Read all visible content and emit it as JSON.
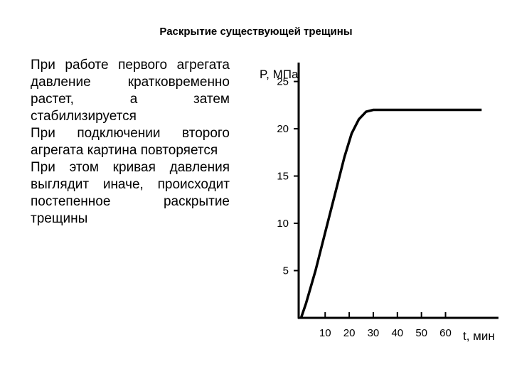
{
  "slide": {
    "title": "Раскрытие существующей трещины",
    "paragraphs": [
      "При работе первого агрегата давление кратковременно растет, а затем стабилизируется",
      "При подключении второго агрегата картина повторяется",
      "При этом кривая давления выглядит иначе, происходит постепенное раскрытие трещины"
    ]
  },
  "chart_data": {
    "type": "line",
    "ylabel": "P, МПа",
    "xlabel": "t, мин",
    "ylim": [
      0,
      27
    ],
    "xlim": [
      -1,
      82
    ],
    "y_ticks": [
      "5",
      "10",
      "15",
      "20",
      "25"
    ],
    "x_ticks": [
      "10",
      "20",
      "30",
      "40",
      "50",
      "60"
    ],
    "grid": false,
    "series": [
      {
        "x": [
          0,
          2,
          6,
          10,
          14,
          18,
          21,
          24,
          27,
          30,
          40,
          50,
          60,
          70,
          75
        ],
        "y": [
          0,
          1.5,
          5,
          9,
          13,
          17,
          19.5,
          21,
          21.8,
          22,
          22,
          22,
          22,
          22,
          22
        ]
      }
    ]
  }
}
